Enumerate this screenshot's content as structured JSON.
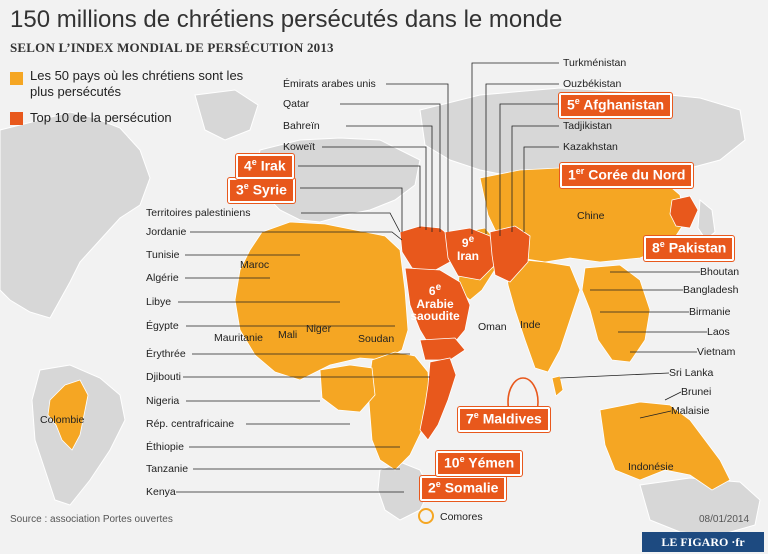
{
  "title": "150 millions de chrétiens persécutés dans le monde",
  "subtitle": "SELON L’INDEX MONDIAL DE PERSÉCUTION 2013",
  "legend": {
    "top50": "Les 50 pays où les chrétiens sont les plus persécutés",
    "top10": "Top 10 de la persécution"
  },
  "colors": {
    "top50": "#f5a623",
    "top10": "#e8581c",
    "land": "#d7d7d7",
    "sea": "#f2f2f2"
  },
  "ranking": [
    {
      "rank": "1",
      "suffix": "er",
      "country": "Corée du Nord"
    },
    {
      "rank": "2",
      "suffix": "e",
      "country": "Somalie"
    },
    {
      "rank": "3",
      "suffix": "e",
      "country": "Syrie"
    },
    {
      "rank": "4",
      "suffix": "e",
      "country": "Irak"
    },
    {
      "rank": "5",
      "suffix": "e",
      "country": "Afghanistan"
    },
    {
      "rank": "6",
      "suffix": "e",
      "country": "Arabie saoudite"
    },
    {
      "rank": "7",
      "suffix": "e",
      "country": "Maldives"
    },
    {
      "rank": "8",
      "suffix": "e",
      "country": "Pakistan"
    },
    {
      "rank": "9",
      "suffix": "e",
      "country": "Iran"
    },
    {
      "rank": "10",
      "suffix": "e",
      "country": "Yémen"
    }
  ],
  "left_labels": [
    "Territoires palestiniens",
    "Jordanie",
    "Tunisie",
    "Algérie",
    "Libye",
    "Égypte",
    "Érythrée",
    "Djibouti",
    "Nigeria",
    "Rép. centrafricaine",
    "Éthiopie",
    "Tanzanie",
    "Kenya"
  ],
  "top_labels": [
    "Émirats arabes unis",
    "Qatar",
    "Bahreïn",
    "Koweït"
  ],
  "right_top_labels": [
    "Turkménistan",
    "Ouzbékistan",
    "Tadjikistan",
    "Kazakhstan"
  ],
  "right_labels": [
    "Bhoutan",
    "Bangladesh",
    "Birmanie",
    "Laos",
    "Vietnam",
    "Sri Lanka",
    "Brunei",
    "Malaisie"
  ],
  "map_labels": {
    "colombie": "Colombie",
    "maroc": "Maroc",
    "mauritanie": "Mauritanie",
    "mali": "Mali",
    "niger": "Niger",
    "soudan": "Soudan",
    "oman": "Oman",
    "inde": "Inde",
    "chine": "Chine",
    "indonesie": "Indonésie",
    "comores": "Comores"
  },
  "map_ranks": {
    "arabie": "6e Arabie saoudite",
    "iran": "9e Iran"
  },
  "source": "Source : association Portes ouvertes",
  "date": "08/01/2014",
  "logo": "LE FIGARO ·fr"
}
